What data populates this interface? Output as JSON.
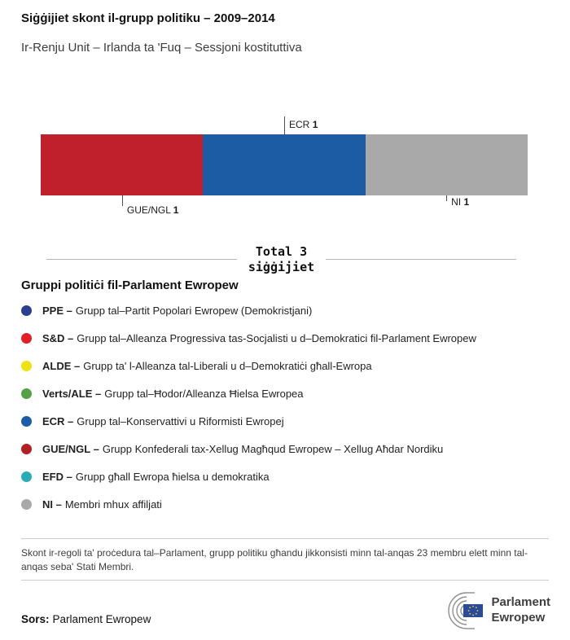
{
  "header": {
    "title": "Siġġijiet skont il-grupp politiku – 2009–2014",
    "subtitle": "Ir-Renju Unit – Irlanda ta 'Fuq – Sessjoni kostituttiva"
  },
  "chart_data": {
    "type": "bar",
    "orientation": "horizontal-stacked",
    "total_seats": 3,
    "total_label": "Total 3\nsiġġijiet",
    "segments": [
      {
        "group": "GUE/NGL",
        "seats": 1,
        "color": "#c0202c",
        "callout": "below"
      },
      {
        "group": "ECR",
        "seats": 1,
        "color": "#1b5ca5",
        "callout": "above"
      },
      {
        "group": "NI",
        "seats": 1,
        "color": "#a9a9a9",
        "callout": "below"
      }
    ]
  },
  "legend": {
    "heading": "Gruppi politiċi fil-Parlament Ewropew",
    "items": [
      {
        "abbr": "PPE –",
        "desc": "Grupp tal–Partit Popolari Ewropew (Demokristjani)",
        "color": "#2b3f8f"
      },
      {
        "abbr": "S&D –",
        "desc": "Grupp tal–Alleanza Progressiva tas-Socjalisti u d–Demokratici fil-Parlament Ewropew",
        "color": "#e01f26"
      },
      {
        "abbr": "ALDE –",
        "desc": "Grupp ta' l-Alleanza tal-Liberali u d–Demokratiċi għall-Ewropa",
        "color": "#efe115"
      },
      {
        "abbr": "Verts/ALE –",
        "desc": "Grupp tal–Ħodor/Alleanza Ħielsa Ewropea",
        "color": "#53a045"
      },
      {
        "abbr": "ECR –",
        "desc": "Grupp tal–Konservattivi u Riformisti Ewropej",
        "color": "#1b5ca5"
      },
      {
        "abbr": "GUE/NGL –",
        "desc": "Grupp Konfederali tax-Xellug Magħqud Ewropew – Xellug Aħdar Nordiku",
        "color": "#b22025"
      },
      {
        "abbr": "EFD –",
        "desc": "Grupp għall Ewropa ħielsa u demokratika",
        "color": "#2aabb5"
      },
      {
        "abbr": "NI –",
        "desc": "Membri mhux affiljati",
        "color": "#a9a9a9"
      }
    ]
  },
  "footnote": "Skont ir-regoli ta' proċedura tal–Parlament, grupp politiku għandu jikkonsisti minn tal-anqas 23 membru elett minn tal-anqas seba' Stati Membri.",
  "source": {
    "label": "Sors:",
    "value": "Parlament Ewropew"
  },
  "logo": {
    "line1": "Parlament",
    "line2": "Ewropew"
  }
}
